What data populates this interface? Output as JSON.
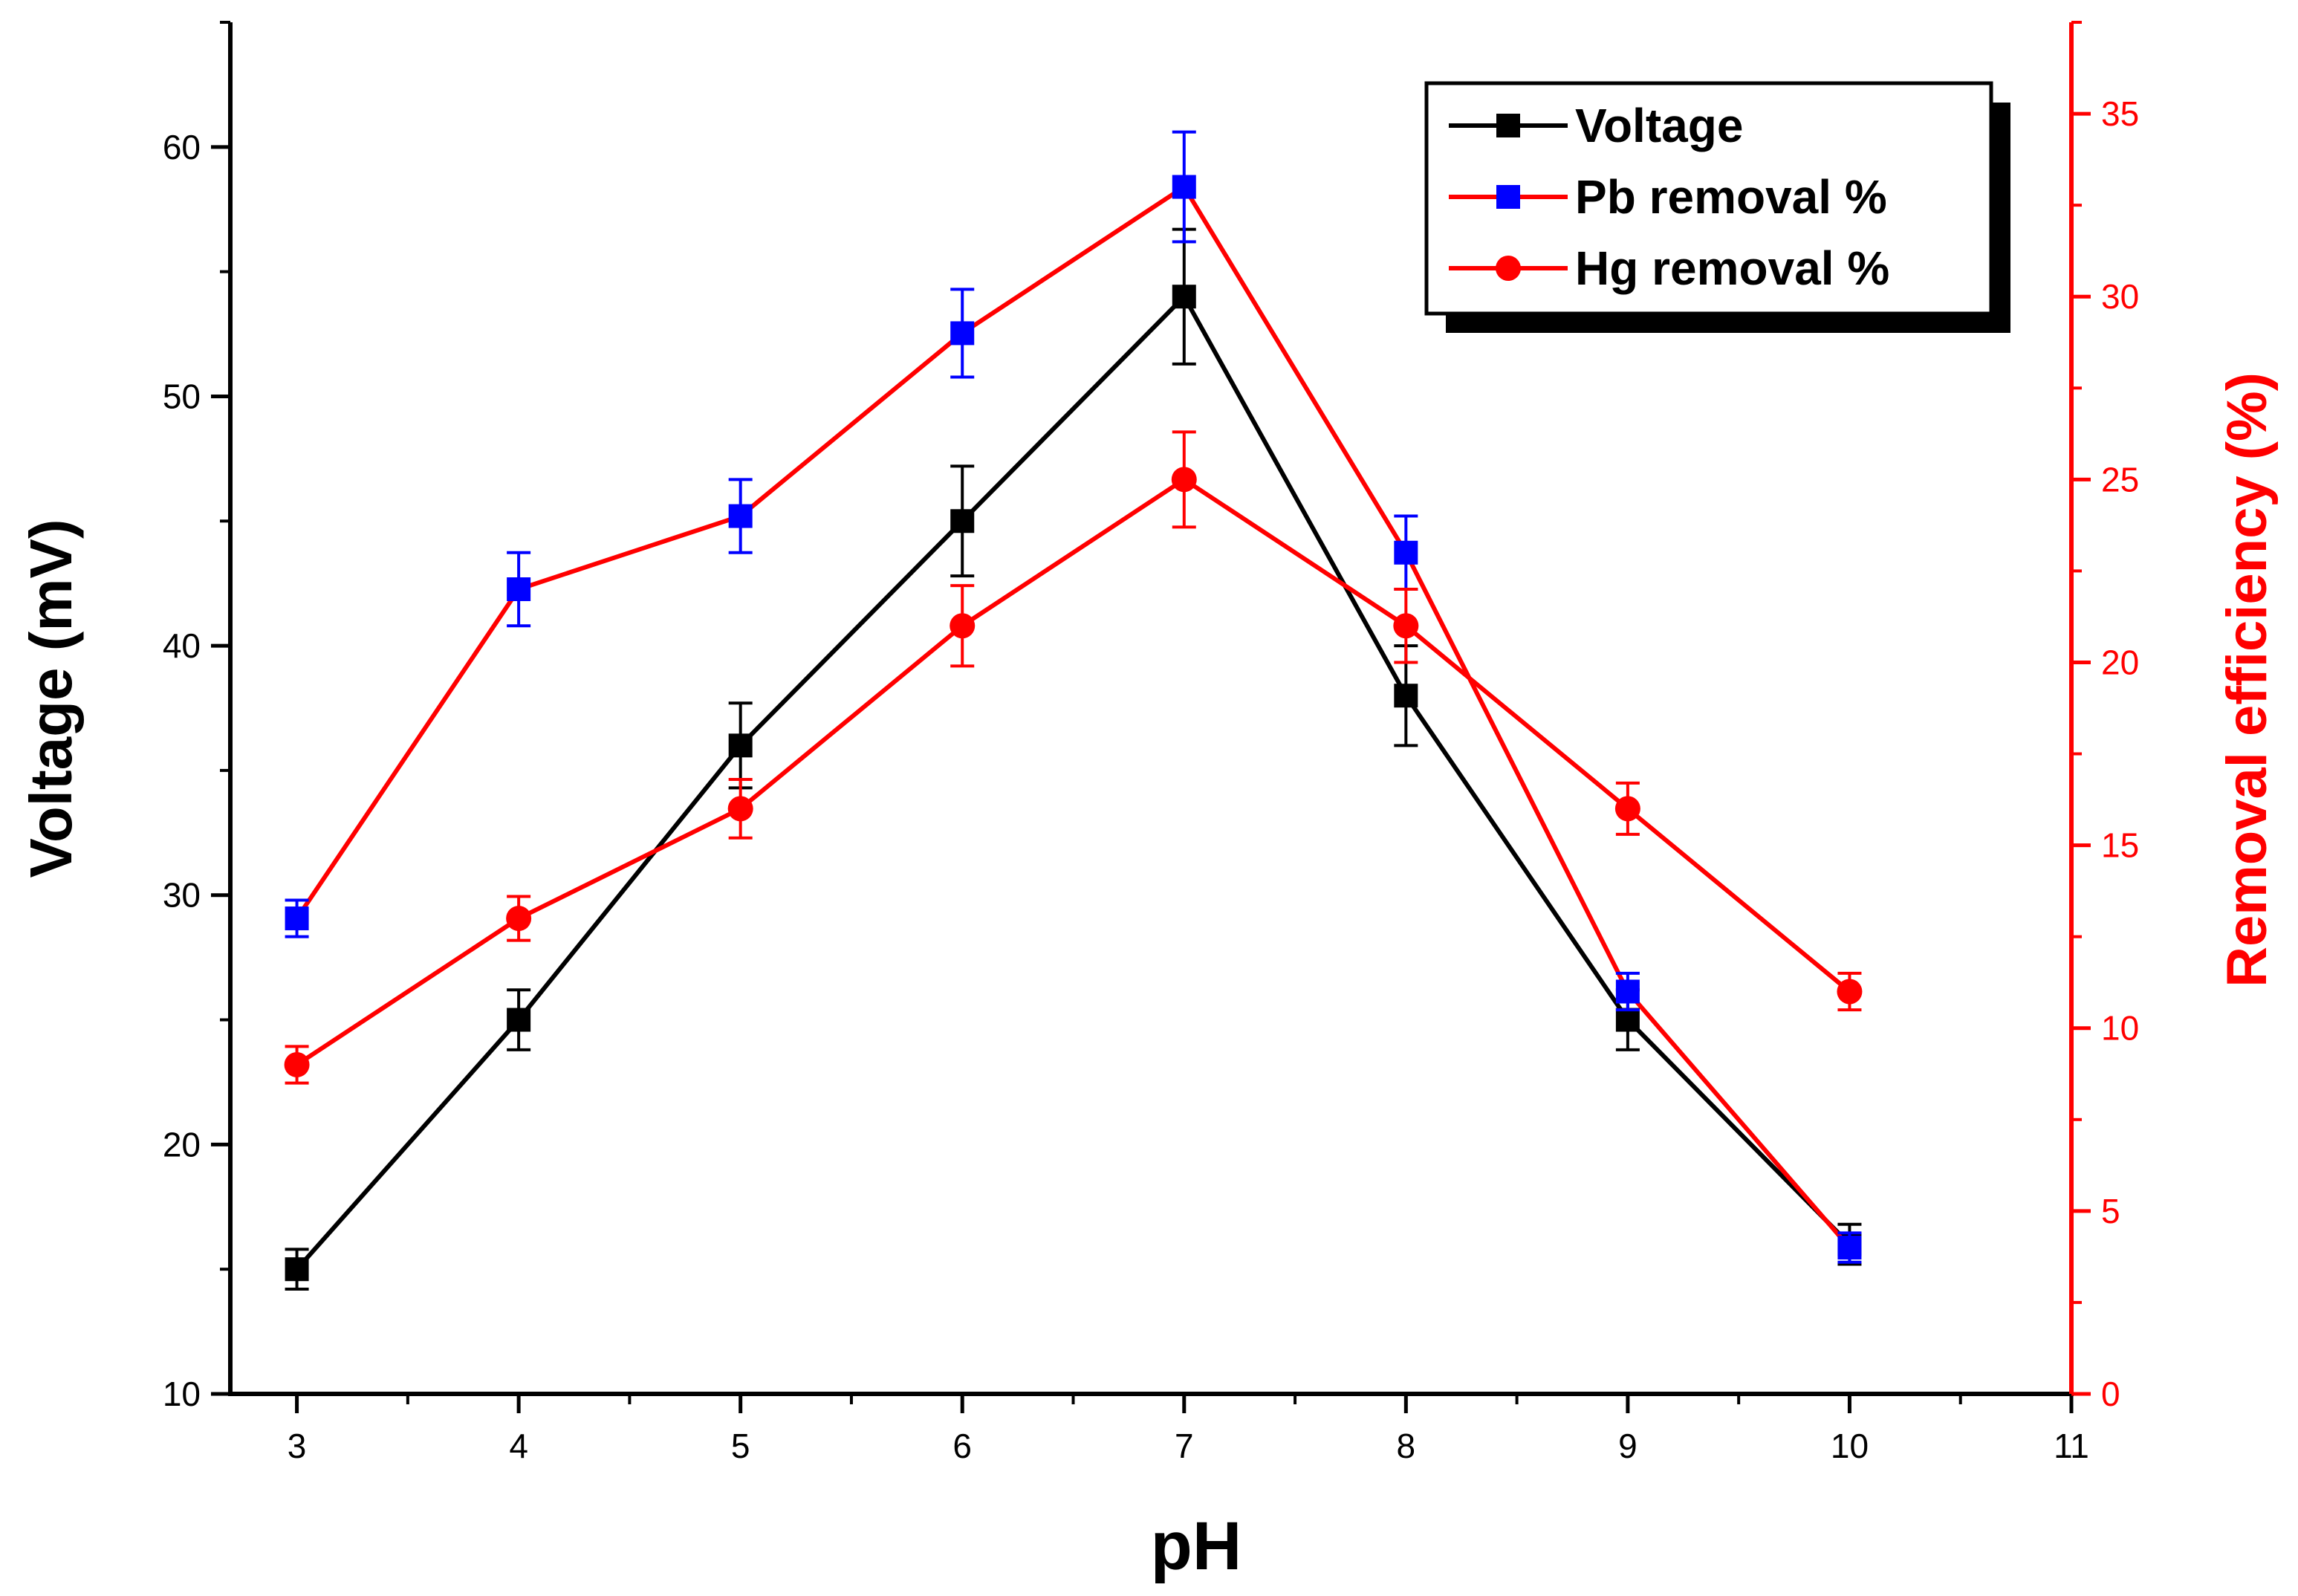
{
  "chart_data": {
    "type": "line",
    "title": "",
    "xlabel": "pH",
    "ylabel": "Voltage (mV)",
    "y2label": "Removal efficiency (%)",
    "xlim": [
      2.7,
      11
    ],
    "ylim": [
      10,
      65
    ],
    "y2lim": [
      0,
      37.5
    ],
    "x_ticks": [
      3,
      4,
      5,
      6,
      7,
      8,
      9,
      10,
      11
    ],
    "y_ticks": [
      10,
      20,
      30,
      40,
      50,
      60
    ],
    "y2_ticks": [
      0,
      5,
      10,
      15,
      20,
      25,
      30,
      35
    ],
    "grid": false,
    "legend_position": "top-right",
    "x": [
      3,
      4,
      5,
      6,
      7,
      8,
      9,
      10
    ],
    "series": [
      {
        "name": "Voltage",
        "axis": "left",
        "line_color": "#000000",
        "marker_color": "#000000",
        "marker": "square",
        "values": [
          15,
          25,
          36,
          45,
          54,
          38,
          25,
          16
        ],
        "errors": [
          0.8,
          1.2,
          1.7,
          2.2,
          2.7,
          2.0,
          1.2,
          0.8
        ]
      },
      {
        "name": " Pb removal %",
        "axis": "right",
        "line_color": "#ff0000",
        "marker_color": "#0000ff",
        "marker": "square",
        "values": [
          13,
          22,
          24,
          29,
          33,
          23,
          11,
          4
        ],
        "errors": [
          0.5,
          1.0,
          1.0,
          1.2,
          1.5,
          1.0,
          0.5,
          0.4
        ]
      },
      {
        "name": "Hg removal %",
        "axis": "right",
        "line_color": "#ff0000",
        "marker_color": "#ff0000",
        "marker": "circle",
        "values": [
          9,
          13,
          16,
          21,
          25,
          21,
          16,
          11
        ],
        "errors": [
          0.5,
          0.6,
          0.8,
          1.1,
          1.3,
          1.0,
          0.7,
          0.5
        ]
      }
    ]
  }
}
